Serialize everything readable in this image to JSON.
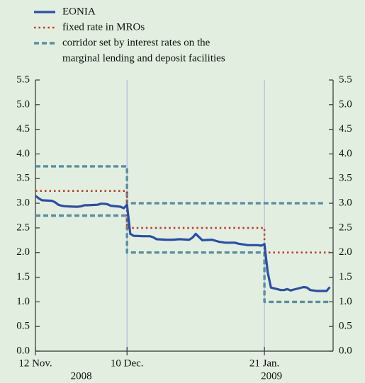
{
  "chart_data": {
    "type": "line",
    "series": [
      {
        "name": [
          "EONIA"
        ],
        "color": "#2b4ea6",
        "style": "solid",
        "x": [
          "2008-11-12",
          "2008-11-13",
          "2008-11-14",
          "2008-11-17",
          "2008-11-18",
          "2008-11-19",
          "2008-11-20",
          "2008-11-21",
          "2008-11-24",
          "2008-11-25",
          "2008-11-26",
          "2008-11-27",
          "2008-11-28",
          "2008-12-01",
          "2008-12-02",
          "2008-12-03",
          "2008-12-04",
          "2008-12-05",
          "2008-12-08",
          "2008-12-09",
          "2008-12-10",
          "2008-12-11",
          "2008-12-12",
          "2008-12-15",
          "2008-12-17",
          "2008-12-18",
          "2008-12-19",
          "2008-12-22",
          "2008-12-24",
          "2008-12-26",
          "2008-12-29",
          "2008-12-30",
          "2008-12-31",
          "2009-01-02",
          "2009-01-05",
          "2009-01-06",
          "2009-01-07",
          "2009-01-08",
          "2009-01-09",
          "2009-01-12",
          "2009-01-13",
          "2009-01-14",
          "2009-01-15",
          "2009-01-16",
          "2009-01-19",
          "2009-01-20",
          "2009-01-21",
          "2009-01-22",
          "2009-01-23",
          "2009-01-26",
          "2009-01-27",
          "2009-01-28",
          "2009-01-29",
          "2009-01-30",
          "2009-02-02",
          "2009-02-03",
          "2009-02-04",
          "2009-02-05",
          "2009-02-06",
          "2009-02-09",
          "2009-02-10"
        ],
        "values": [
          3.15,
          3.1,
          3.06,
          3.05,
          3.02,
          2.97,
          2.95,
          2.94,
          2.93,
          2.93,
          2.94,
          2.96,
          2.96,
          2.97,
          2.99,
          2.99,
          2.98,
          2.95,
          2.93,
          2.9,
          2.97,
          2.38,
          2.34,
          2.33,
          2.33,
          2.31,
          2.27,
          2.26,
          2.26,
          2.27,
          2.26,
          2.3,
          2.38,
          2.25,
          2.26,
          2.24,
          2.22,
          2.21,
          2.2,
          2.2,
          2.18,
          2.17,
          2.16,
          2.15,
          2.15,
          2.14,
          2.17,
          1.6,
          1.29,
          1.24,
          1.24,
          1.26,
          1.23,
          1.25,
          1.3,
          1.29,
          1.24,
          1.23,
          1.22,
          1.22,
          1.3
        ]
      },
      {
        "name": [
          "fixed rate in MROs"
        ],
        "color": "#c0392b",
        "style": "dotted",
        "x": [
          "2008-11-12",
          "2008-12-10",
          "2008-12-10",
          "2009-01-21",
          "2009-01-21",
          "2009-02-10"
        ],
        "values": [
          3.25,
          3.25,
          2.5,
          2.5,
          2.0,
          2.0
        ]
      },
      {
        "name": [
          "corridor set by interest rates on the",
          "marginal lending and deposit facilities"
        ],
        "color": "#5b8e9e",
        "style": "dashed",
        "x": [
          "2008-11-12",
          "2008-12-10",
          "2008-12-10",
          "2009-01-21",
          "2009-01-21",
          "2009-02-08"
        ],
        "values": [
          3.75,
          3.75,
          3.0,
          3.0,
          3.0,
          3.0
        ],
        "lower_x": [
          "2008-11-12",
          "2008-12-10",
          "2008-12-10",
          "2009-01-21",
          "2009-01-21",
          "2009-02-10"
        ],
        "lower_values": [
          2.75,
          2.75,
          2.0,
          2.0,
          1.0,
          1.0
        ]
      }
    ],
    "xlim": [
      "2008-11-12",
      "2009-02-11"
    ],
    "xticks": [
      {
        "value": "2008-11-12",
        "label": "12 Nov."
      },
      {
        "value": "2008-12-10",
        "label": "10 Dec."
      },
      {
        "value": "2009-01-21",
        "label": "21 Jan."
      }
    ],
    "year_labels": [
      "2008",
      "2009"
    ],
    "ylim": [
      0,
      5.5
    ],
    "yticks": [
      {
        "value": 0,
        "label": "0.0"
      },
      {
        "value": 0.5,
        "label": "0.5"
      },
      {
        "value": 1,
        "label": "1.0"
      },
      {
        "value": 1.5,
        "label": "1.5"
      },
      {
        "value": 2,
        "label": "2.0"
      },
      {
        "value": 2.5,
        "label": "2.5"
      },
      {
        "value": 3,
        "label": "3.0"
      },
      {
        "value": 3.5,
        "label": "3.5"
      },
      {
        "value": 4,
        "label": "4.0"
      },
      {
        "value": 4.5,
        "label": "4.5"
      },
      {
        "value": 5,
        "label": "5.0"
      },
      {
        "value": 5.5,
        "label": "5.5"
      }
    ],
    "y2lim": [
      0,
      5.5
    ],
    "y2ticks": [
      {
        "value": 0,
        "label": "0.0"
      },
      {
        "value": 0.5,
        "label": "0.5"
      },
      {
        "value": 1,
        "label": "1.0"
      },
      {
        "value": 1.5,
        "label": "1.5"
      },
      {
        "value": 2,
        "label": "2.0"
      },
      {
        "value": 2.5,
        "label": "2.5"
      },
      {
        "value": 3,
        "label": "3.0"
      },
      {
        "value": 3.5,
        "label": "3.5"
      },
      {
        "value": 4,
        "label": "4.0"
      },
      {
        "value": 4.5,
        "label": "4.5"
      },
      {
        "value": 5,
        "label": "5.0"
      },
      {
        "value": 5.5,
        "label": "5.5"
      }
    ],
    "grid": true
  }
}
